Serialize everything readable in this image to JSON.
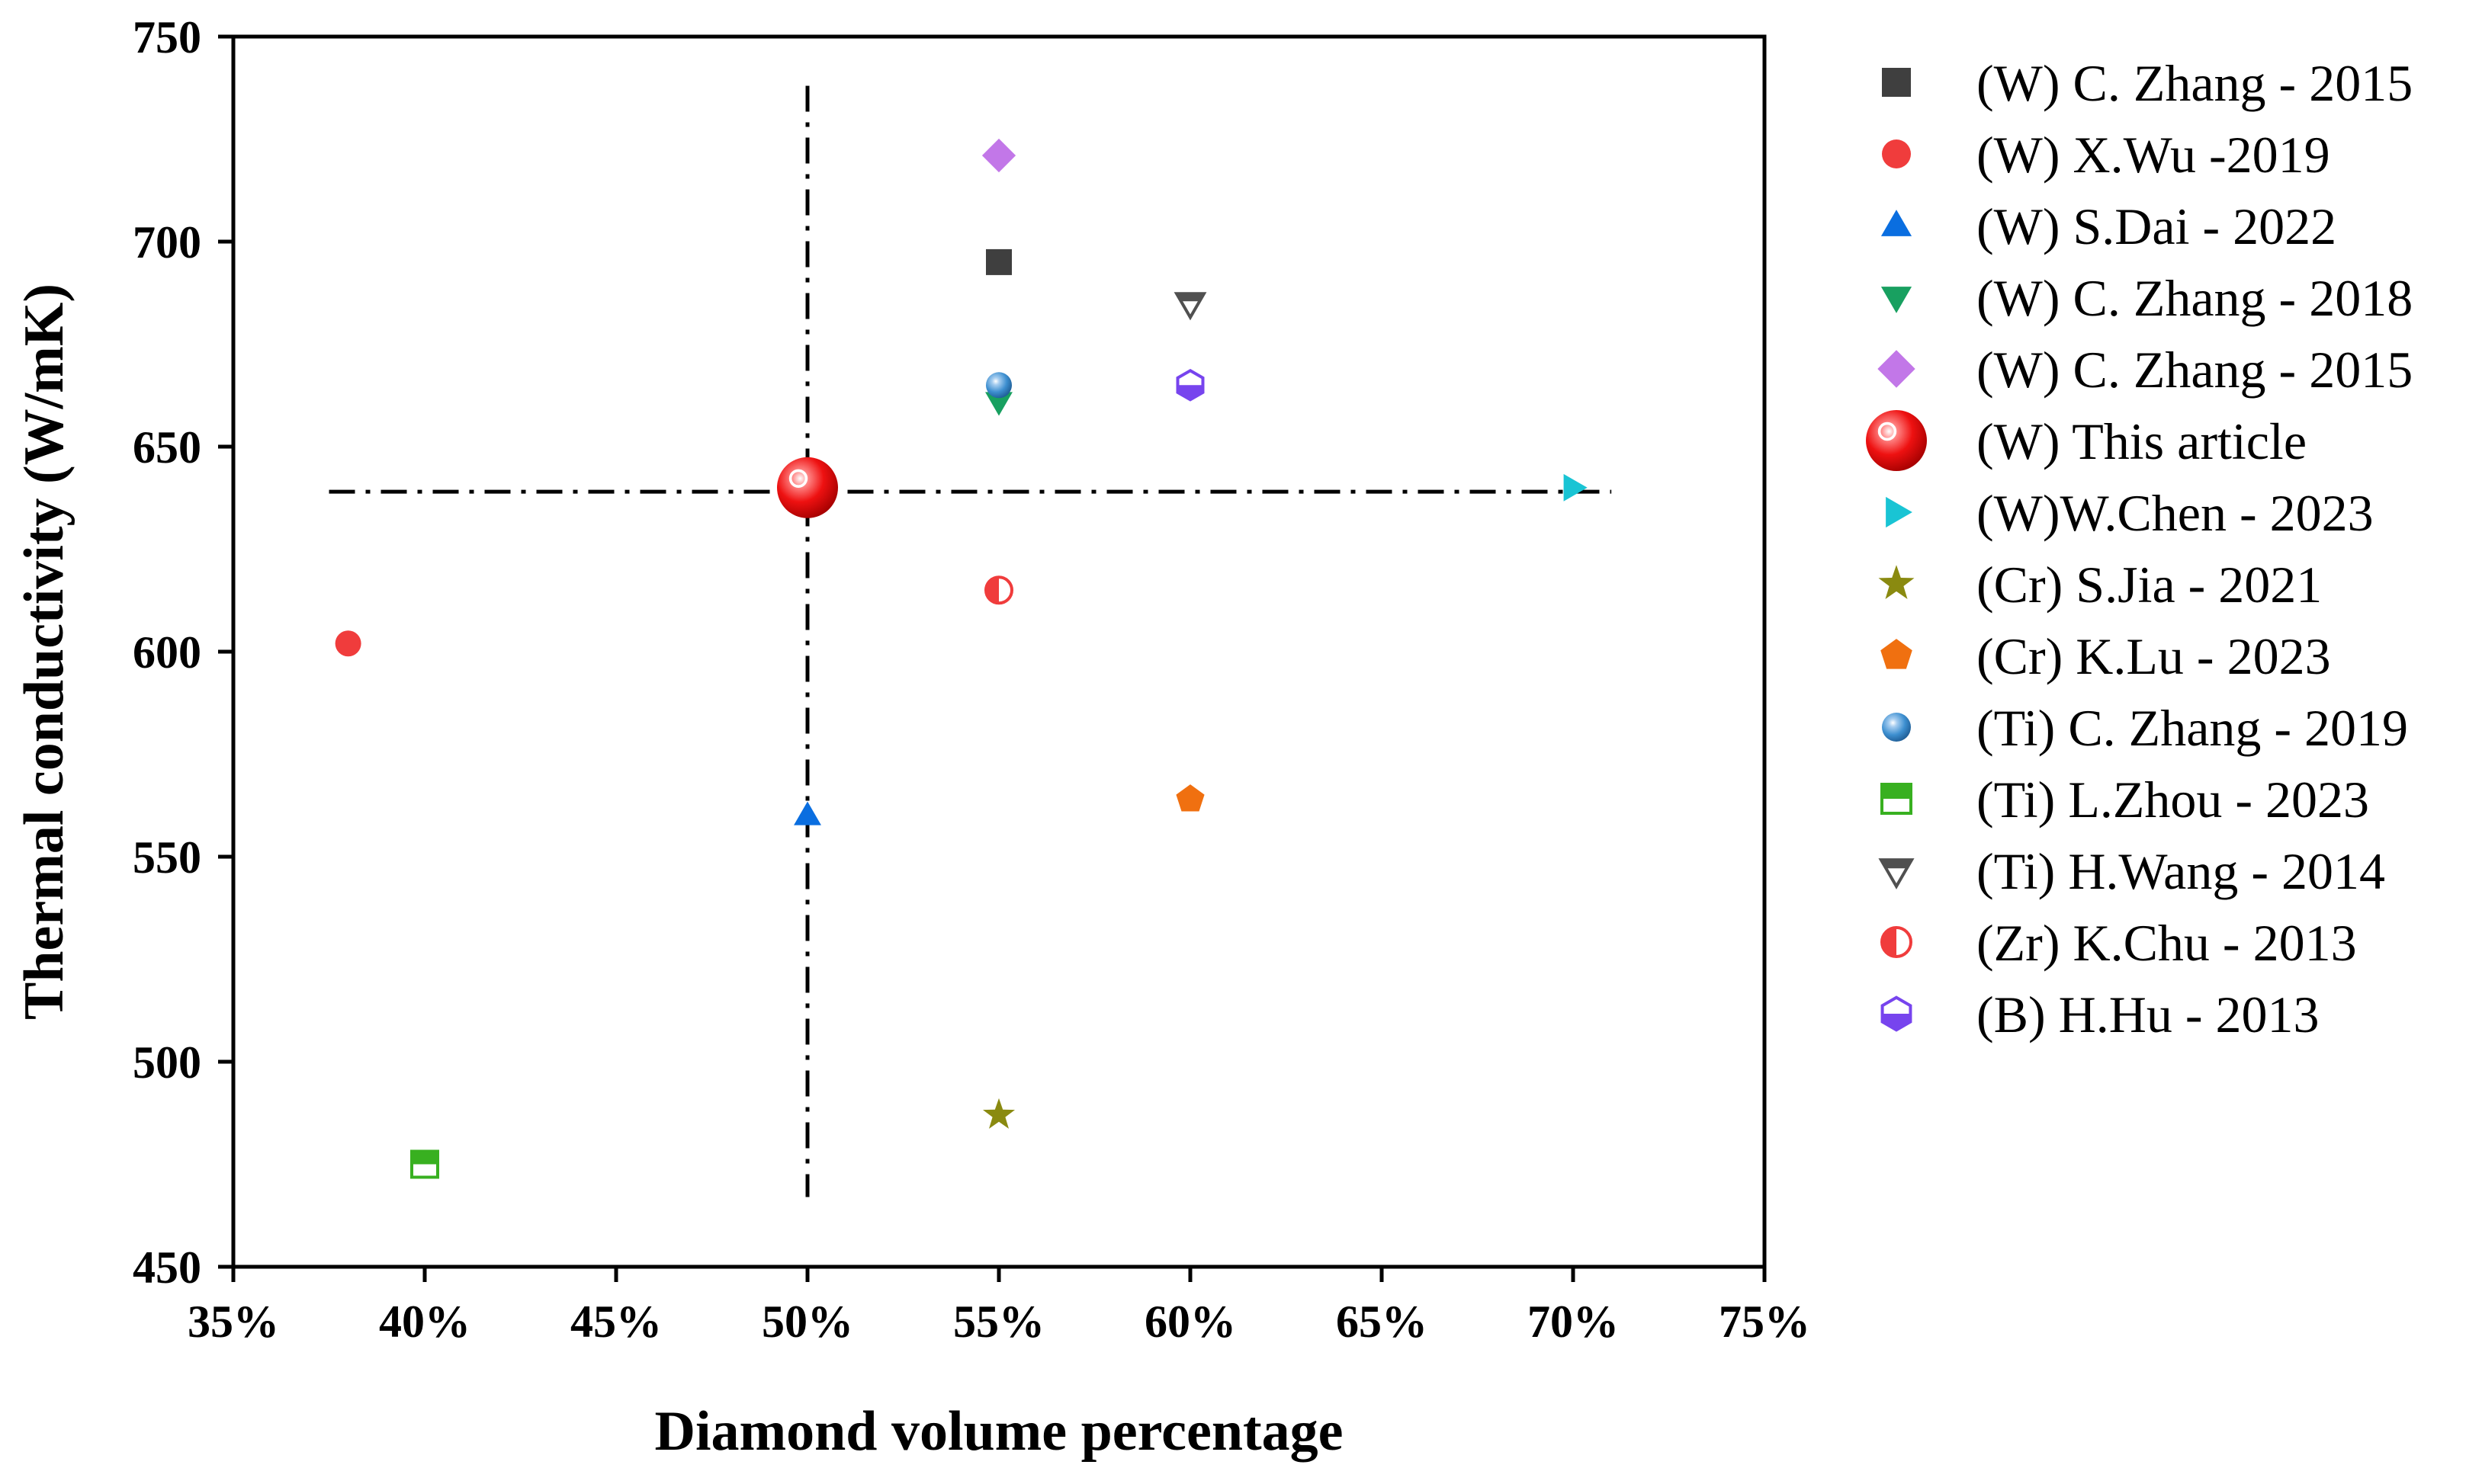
{
  "chart_data": {
    "type": "scatter",
    "title": "",
    "xlabel": "Diamond volume percentage",
    "ylabel": "Thermal conductivity (W/mK)",
    "xlim": [
      35,
      75
    ],
    "ylim": [
      450,
      750
    ],
    "x_ticks": [
      35,
      40,
      45,
      50,
      55,
      60,
      65,
      70,
      75
    ],
    "x_tick_labels": [
      "35%",
      "40%",
      "45%",
      "50%",
      "55%",
      "60%",
      "65%",
      "70%",
      "75%"
    ],
    "y_ticks": [
      450,
      500,
      550,
      600,
      650,
      700,
      750
    ],
    "y_tick_labels": [
      "450",
      "500",
      "550",
      "600",
      "650",
      "700",
      "750"
    ],
    "grid": false,
    "legend_position": "outside-right",
    "reference_lines": [
      {
        "orientation": "vertical",
        "x": 50,
        "from": 467,
        "to": 738,
        "style": "dash-dot"
      },
      {
        "orientation": "horizontal",
        "y": 639,
        "from": 37.5,
        "to": 71,
        "style": "dash-dot"
      }
    ],
    "series": [
      {
        "name": "(W) C. Zhang - 2015",
        "marker": "square",
        "color": "#3f3f3f",
        "x": [
          55
        ],
        "y": [
          695
        ]
      },
      {
        "name": "(W) X.Wu -2019",
        "marker": "circle",
        "color": "#f03c3c",
        "x": [
          38
        ],
        "y": [
          602
        ]
      },
      {
        "name": "(W) S.Dai - 2022",
        "marker": "triangle-up",
        "color": "#0a6ee0",
        "x": [
          50
        ],
        "y": [
          560
        ]
      },
      {
        "name": "(W) C. Zhang - 2018",
        "marker": "triangle-down",
        "color": "#18a060",
        "x": [
          55
        ],
        "y": [
          661
        ]
      },
      {
        "name": "(W) C. Zhang - 2015",
        "marker": "diamond",
        "color": "#c277e8",
        "x": [
          55
        ],
        "y": [
          721
        ]
      },
      {
        "name": "(W) This article",
        "marker": "sphere-large",
        "color": "#ee1111",
        "x": [
          50
        ],
        "y": [
          640
        ]
      },
      {
        "name": "(W)W.Chen - 2023",
        "marker": "triangle-right",
        "color": "#19c4d4",
        "x": [
          70
        ],
        "y": [
          640
        ]
      },
      {
        "name": "(Cr) S.Jia - 2021",
        "marker": "star",
        "color": "#8a8a10",
        "x": [
          55
        ],
        "y": [
          487
        ]
      },
      {
        "name": "(Cr) K.Lu - 2023",
        "marker": "pentagon",
        "color": "#f07010",
        "x": [
          60
        ],
        "y": [
          564
        ]
      },
      {
        "name": "(Ti) C. Zhang - 2019",
        "marker": "sphere",
        "color": "#3d8fd0",
        "x": [
          55
        ],
        "y": [
          665
        ]
      },
      {
        "name": "(Ti) L.Zhou - 2023",
        "marker": "square-half-top",
        "color": "#38b020",
        "x": [
          40
        ],
        "y": [
          475
        ]
      },
      {
        "name": "(Ti) H.Wang - 2014",
        "marker": "triangle-down-half-top",
        "color": "#505050",
        "x": [
          60
        ],
        "y": [
          685
        ]
      },
      {
        "name": "(Zr) K.Chu - 2013",
        "marker": "circle-half-left",
        "color": "#f03c3c",
        "x": [
          55
        ],
        "y": [
          615
        ]
      },
      {
        "name": "(B) H.Hu - 2013",
        "marker": "hexagon-half-bottom",
        "color": "#7744ee",
        "x": [
          60
        ],
        "y": [
          665
        ]
      }
    ]
  }
}
